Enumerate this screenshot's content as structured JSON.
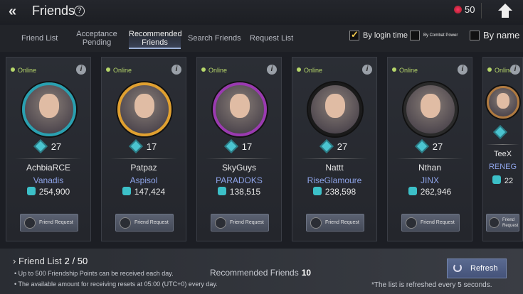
{
  "header": {
    "title": "Friends",
    "currency": "50"
  },
  "tabs": [
    {
      "label": "Friend List"
    },
    {
      "label": "Acceptance Pending"
    },
    {
      "label": "Recommended Friends",
      "active": true
    },
    {
      "label": "Search Friends"
    },
    {
      "label": "Request List"
    }
  ],
  "sort": {
    "by_login_time": "By login time",
    "by_combat_power": "By Combat Power",
    "by_name": "By name",
    "selected": "By login time"
  },
  "cards": [
    {
      "status": "Online",
      "level": "27",
      "name": "AchbiaRCE",
      "guild": "Vanadis",
      "power": "254,900",
      "button": "Friend Request",
      "ring": "#2aa0b0"
    },
    {
      "status": "Online",
      "level": "17",
      "name": "Patpaz",
      "guild": "Aspisol",
      "power": "147,424",
      "button": "Friend Request",
      "ring": "#e0a030"
    },
    {
      "status": "Online",
      "level": "17",
      "name": "SkyGuys",
      "guild": "PARADOKS",
      "power": "138,515",
      "button": "Friend Request",
      "ring": "#9a3ab0"
    },
    {
      "status": "Online",
      "level": "27",
      "name": "Nattt",
      "guild": "RiseGlamoure",
      "power": "238,598",
      "button": "Friend Request",
      "ring": "#1a1a1a"
    },
    {
      "status": "Online",
      "level": "27",
      "name": "Nthan",
      "guild": "JINX",
      "power": "262,946",
      "button": "Friend Request",
      "ring": "#2a2a2a"
    },
    {
      "status": "Online",
      "level": "",
      "name": "TeeX",
      "guild": "RENEG",
      "power": "22",
      "button": "Friend Request",
      "ring": "#b07a40"
    }
  ],
  "footer": {
    "friend_list_label": "Friend List",
    "friend_list_count": "2 / 50",
    "line1": "Up to 500 Friendship Points can be received each day.",
    "line2": "The available amount for receiving resets at 05:00 (UTC+0) every day.",
    "recommended_label": "Recommended Friends",
    "recommended_count": "10",
    "refresh": "Refresh",
    "note": "*The list is refreshed every 5 seconds."
  }
}
